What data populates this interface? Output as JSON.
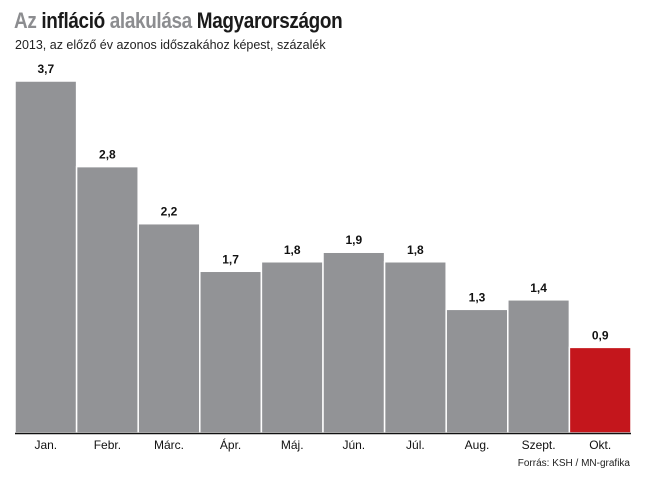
{
  "chart_data": {
    "type": "bar",
    "title_parts": [
      {
        "text": "Az",
        "color": "#8c8d90"
      },
      {
        "text": "infláció",
        "color": "#1a1a1a"
      },
      {
        "text": "alakulása",
        "color": "#8c8d90"
      },
      {
        "text": "Magyarországon",
        "color": "#1a1a1a"
      }
    ],
    "subtitle": "2013, az előző év azonos időszakához képest, százalék",
    "categories": [
      "Jan.",
      "Febr.",
      "Márc.",
      "Ápr.",
      "Máj.",
      "Jún.",
      "Júl.",
      "Aug.",
      "Szept.",
      "Okt."
    ],
    "values": [
      3.7,
      2.8,
      2.2,
      1.7,
      1.8,
      1.9,
      1.8,
      1.3,
      1.4,
      0.9
    ],
    "value_labels": [
      "3,7",
      "2,8",
      "2,2",
      "1,7",
      "1,8",
      "1,9",
      "1,8",
      "1,3",
      "1,4",
      "0,9"
    ],
    "highlight_index": 9,
    "colors": {
      "bar": "#929396",
      "highlight": "#c4161c",
      "separator": "#ffffff",
      "baseline": "#111111"
    },
    "ylim": [
      0,
      3.7
    ],
    "grid": false,
    "legend": "none"
  },
  "source": "Forrás: KSH / MN-grafika"
}
